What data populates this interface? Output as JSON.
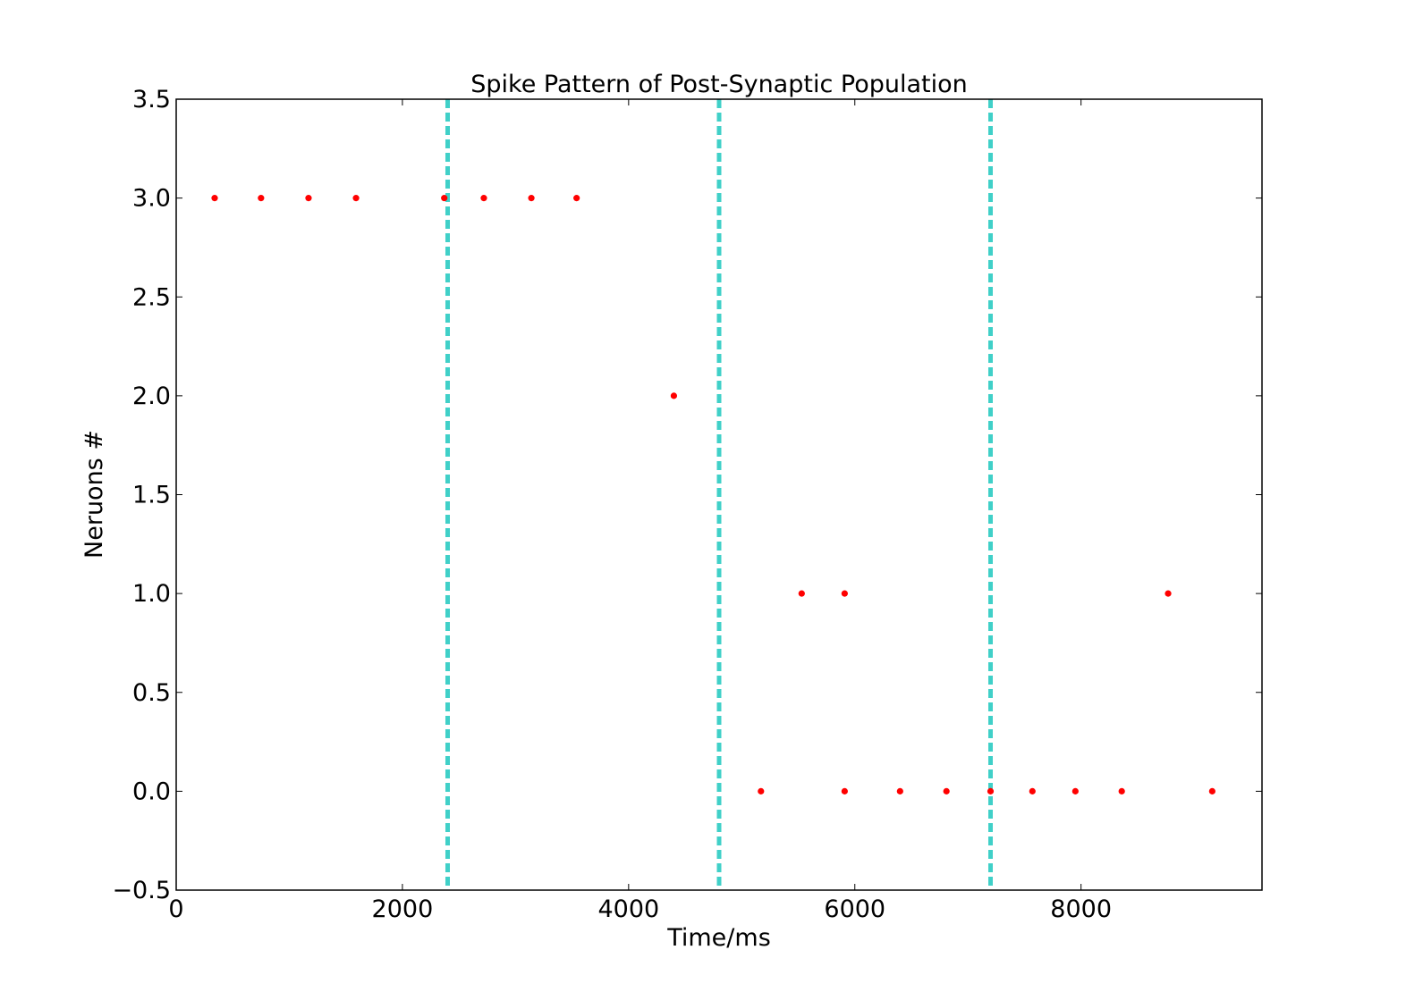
{
  "chart_data": {
    "type": "scatter",
    "title": "Spike Pattern of Post-Synaptic Population",
    "xlabel": "Time/ms",
    "ylabel": "Neruons #",
    "xlim": [
      0,
      9600
    ],
    "ylim": [
      -0.5,
      3.5
    ],
    "x_ticks": [
      0,
      2000,
      4000,
      6000,
      8000
    ],
    "x_tick_labels": [
      "0",
      "2000",
      "4000",
      "6000",
      "8000"
    ],
    "y_ticks": [
      -0.5,
      0.0,
      0.5,
      1.0,
      1.5,
      2.0,
      2.5,
      3.0,
      3.5
    ],
    "y_tick_labels": [
      "−0.5",
      "0.0",
      "0.5",
      "1.0",
      "1.5",
      "2.0",
      "2.5",
      "3.0",
      "3.5"
    ],
    "grid": false,
    "legend": "none",
    "spikes": {
      "color": "#ff0000",
      "points": [
        {
          "x": 340,
          "y": 3
        },
        {
          "x": 750,
          "y": 3
        },
        {
          "x": 1170,
          "y": 3
        },
        {
          "x": 1590,
          "y": 3
        },
        {
          "x": 2370,
          "y": 3
        },
        {
          "x": 2720,
          "y": 3
        },
        {
          "x": 3140,
          "y": 3
        },
        {
          "x": 3540,
          "y": 3
        },
        {
          "x": 4400,
          "y": 2
        },
        {
          "x": 5530,
          "y": 1
        },
        {
          "x": 5910,
          "y": 1
        },
        {
          "x": 8770,
          "y": 1
        },
        {
          "x": 5170,
          "y": 0
        },
        {
          "x": 5910,
          "y": 0
        },
        {
          "x": 6400,
          "y": 0
        },
        {
          "x": 6810,
          "y": 0
        },
        {
          "x": 7200,
          "y": 0
        },
        {
          "x": 7570,
          "y": 0
        },
        {
          "x": 7950,
          "y": 0
        },
        {
          "x": 8360,
          "y": 0
        },
        {
          "x": 9160,
          "y": 0
        }
      ]
    },
    "vertical_lines": {
      "color": "#40d0c8",
      "style": "dashed",
      "x": [
        2400,
        4800,
        7200
      ]
    }
  }
}
